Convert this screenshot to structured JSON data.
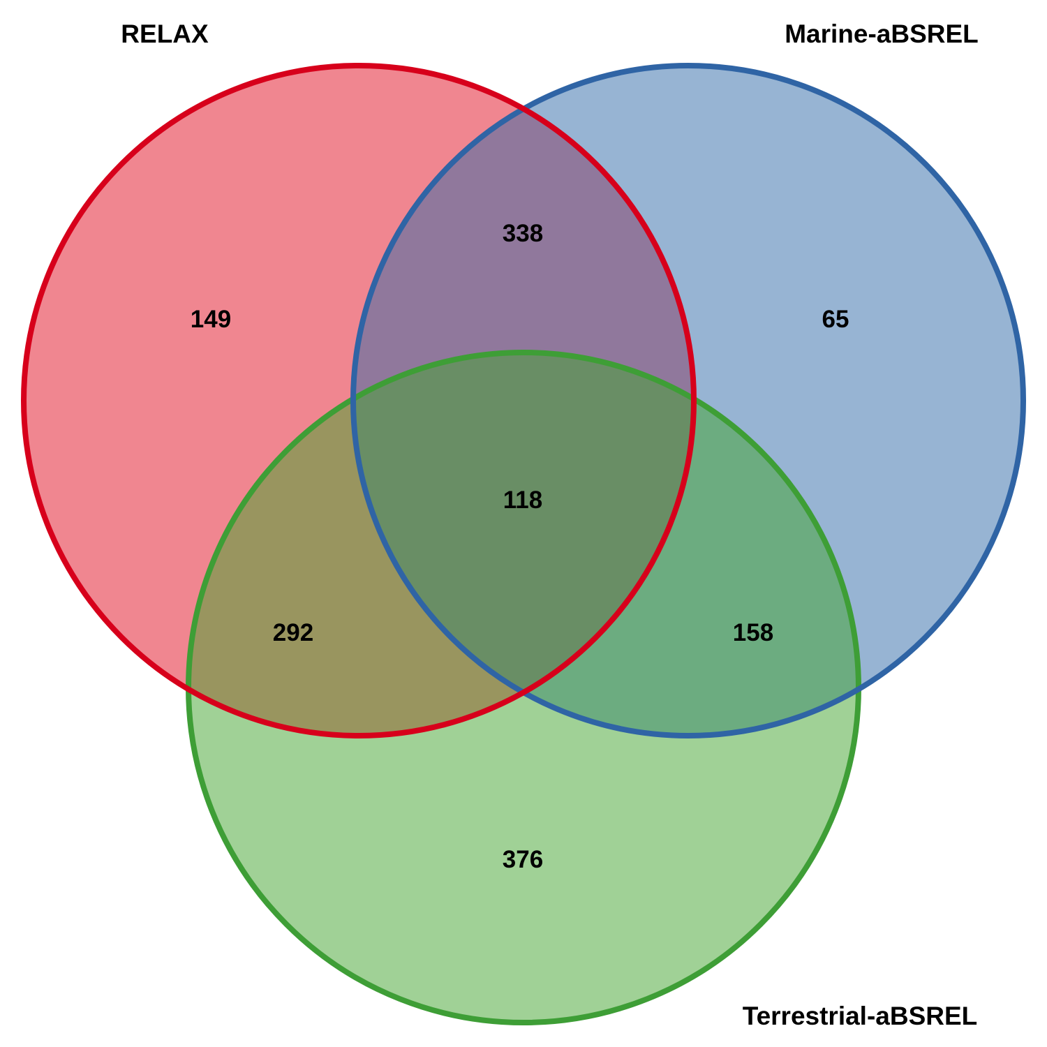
{
  "sets": [
    {
      "id": "relax",
      "label": "RELAX",
      "stroke": "#D7001B",
      "fill": "#E10E22"
    },
    {
      "id": "marine",
      "label": "Marine-aBSREL",
      "stroke": "#2F64A5",
      "fill": "#2F69A8"
    },
    {
      "id": "terrestrial",
      "label": "Terrestrial-aBSREL",
      "stroke": "#3E9E36",
      "fill": "#42A32E"
    }
  ],
  "regions": {
    "relax_only": "149",
    "marine_only": "65",
    "terrestrial_only": "376",
    "relax_marine": "338",
    "relax_terrestrial": "292",
    "marine_terrestrial": "158",
    "all_three": "118"
  },
  "fill_opacity": 0.5
}
